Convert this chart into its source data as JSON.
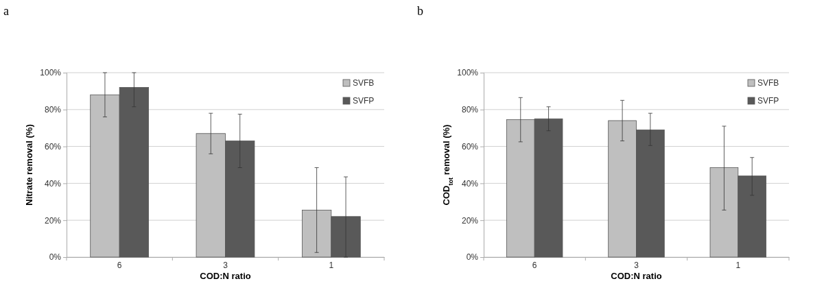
{
  "chart_data": [
    {
      "type": "bar",
      "annotations": [
        "a"
      ],
      "xlabel": "COD:N ratio",
      "ylabel": "Nitrate removal (%)",
      "categories": [
        "6",
        "3",
        "1"
      ],
      "series": [
        {
          "name": "SVFB",
          "color": "#bfbfbf",
          "values": [
            88,
            67,
            25.5
          ],
          "errors": [
            [
              76,
              100
            ],
            [
              56,
              78
            ],
            [
              2.5,
              48.5
            ]
          ]
        },
        {
          "name": "SVFP",
          "color": "#595959",
          "values": [
            92,
            63,
            22
          ],
          "errors": [
            [
              81.5,
              100
            ],
            [
              48.5,
              77.5
            ],
            [
              0,
              43.5
            ]
          ]
        }
      ],
      "ylim": [
        0,
        100
      ],
      "yticks": [
        {
          "value": 0,
          "label": "0%"
        },
        {
          "value": 20,
          "label": "20%"
        },
        {
          "value": 40,
          "label": "40%"
        },
        {
          "value": 60,
          "label": "60%"
        },
        {
          "value": 80,
          "label": "80%"
        },
        {
          "value": 100,
          "label": "100%"
        }
      ],
      "grid": "y",
      "legend": "top right"
    },
    {
      "type": "bar",
      "annotations": [
        "b"
      ],
      "xlabel": "COD:N ratio",
      "ylabel": "COD$_{tot}$ removal (%)",
      "categories": [
        "6",
        "3",
        "1"
      ],
      "series": [
        {
          "name": "SVFB",
          "color": "#bfbfbf",
          "values": [
            74.5,
            74,
            48.5
          ],
          "errors": [
            [
              62.5,
              86.5
            ],
            [
              63,
              85
            ],
            [
              25.5,
              71
            ]
          ]
        },
        {
          "name": "SVFP",
          "color": "#595959",
          "values": [
            75,
            69,
            44
          ],
          "errors": [
            [
              68.5,
              81.5
            ],
            [
              60.5,
              78
            ],
            [
              33.5,
              54
            ]
          ]
        }
      ],
      "ylim": [
        0,
        100
      ],
      "yticks": [
        {
          "value": 0,
          "label": "0%"
        },
        {
          "value": 20,
          "label": "20%"
        },
        {
          "value": 40,
          "label": "40%"
        },
        {
          "value": 60,
          "label": "60%"
        },
        {
          "value": 80,
          "label": "80%"
        },
        {
          "value": 100,
          "label": "100%"
        }
      ],
      "grid": "y",
      "legend": "top right"
    }
  ]
}
